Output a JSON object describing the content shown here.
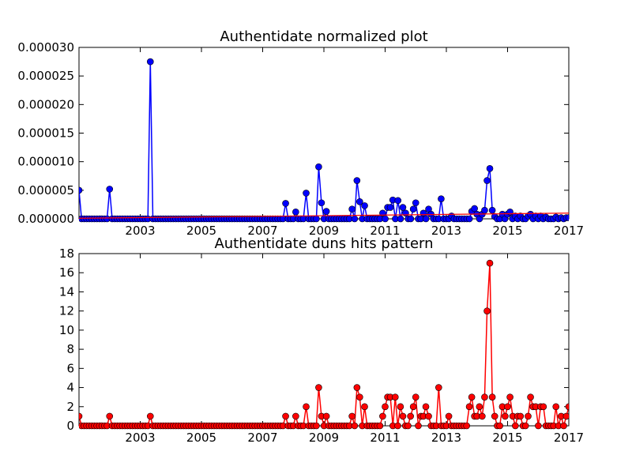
{
  "chart_data": [
    {
      "type": "line",
      "title": "Authentidate normalized plot",
      "xlabel": "",
      "ylabel": "",
      "x_ticks": [
        "2003",
        "2005",
        "2007",
        "2009",
        "2011",
        "2013",
        "2015",
        "2017"
      ],
      "y_ticks": [
        "0.000000",
        "0.000005",
        "0.000010",
        "0.000015",
        "0.000020",
        "0.000025",
        "0.000030"
      ],
      "xlim": [
        2001.0,
        2017.0
      ],
      "ylim": [
        0,
        3e-05
      ],
      "colors": {
        "series": "#0000ff",
        "trend": "#ff0000"
      },
      "series": [
        {
          "points": [
            [
              2001.0,
              5e-06
            ],
            [
              2002.0,
              5.2e-06
            ],
            [
              2003.33,
              2.75e-05
            ],
            [
              2007.75,
              2.7e-06
            ],
            [
              2008.08,
              1.2e-06
            ],
            [
              2008.42,
              4.5e-06
            ],
            [
              2008.83,
              9.1e-06
            ],
            [
              2008.92,
              2.8e-06
            ],
            [
              2009.08,
              1.3e-06
            ],
            [
              2009.92,
              1.7e-06
            ],
            [
              2010.08,
              6.7e-06
            ],
            [
              2010.17,
              3e-06
            ],
            [
              2010.33,
              2.3e-06
            ],
            [
              2010.92,
              1e-06
            ],
            [
              2011.08,
              2e-06
            ],
            [
              2011.17,
              2e-06
            ],
            [
              2011.25,
              3.3e-06
            ],
            [
              2011.42,
              3.2e-06
            ],
            [
              2011.58,
              2e-06
            ],
            [
              2011.67,
              1e-06
            ],
            [
              2011.92,
              1.7e-06
            ],
            [
              2012.0,
              2.8e-06
            ],
            [
              2012.25,
              1e-06
            ],
            [
              2012.42,
              1.7e-06
            ],
            [
              2012.5,
              8e-07
            ],
            [
              2012.83,
              3.5e-06
            ],
            [
              2013.17,
              5e-07
            ],
            [
              2013.83,
              1.3e-06
            ],
            [
              2013.92,
              1.8e-06
            ],
            [
              2014.0,
              8e-07
            ],
            [
              2014.17,
              8e-07
            ],
            [
              2014.25,
              1.5e-06
            ],
            [
              2014.33,
              6.7e-06
            ],
            [
              2014.42,
              8.8e-06
            ],
            [
              2014.5,
              1.5e-06
            ],
            [
              2014.58,
              4e-07
            ],
            [
              2014.83,
              8e-07
            ],
            [
              2015.0,
              8e-07
            ],
            [
              2015.08,
              1.2e-06
            ],
            [
              2015.25,
              5e-07
            ],
            [
              2015.42,
              5e-07
            ],
            [
              2015.67,
              5e-07
            ],
            [
              2015.75,
              8e-07
            ],
            [
              2015.92,
              5e-07
            ],
            [
              2016.08,
              5e-07
            ],
            [
              2016.25,
              3e-07
            ],
            [
              2016.58,
              3e-07
            ],
            [
              2016.75,
              2e-07
            ],
            [
              2016.92,
              2e-07
            ],
            [
              2017.0,
              2e-07
            ]
          ]
        }
      ],
      "trend_line": [
        [
          2001.0,
          1e-07
        ],
        [
          2017.0,
          1e-06
        ]
      ]
    },
    {
      "type": "line",
      "title": "Authentidate duns hits pattern",
      "xlabel": "",
      "ylabel": "",
      "x_ticks": [
        "2003",
        "2005",
        "2007",
        "2009",
        "2011",
        "2013",
        "2015",
        "2017"
      ],
      "y_ticks": [
        "0",
        "2",
        "4",
        "6",
        "8",
        "10",
        "12",
        "14",
        "16",
        "18"
      ],
      "xlim": [
        2001.0,
        2017.0
      ],
      "ylim": [
        0,
        18
      ],
      "colors": {
        "series": "#ff0000"
      },
      "series": [
        {
          "points": [
            [
              2001.0,
              1
            ],
            [
              2002.0,
              1
            ],
            [
              2003.33,
              1
            ],
            [
              2007.75,
              1
            ],
            [
              2008.08,
              1
            ],
            [
              2008.42,
              2
            ],
            [
              2008.83,
              4
            ],
            [
              2008.92,
              1
            ],
            [
              2009.08,
              1
            ],
            [
              2009.92,
              1
            ],
            [
              2010.08,
              4
            ],
            [
              2010.17,
              3
            ],
            [
              2010.33,
              2
            ],
            [
              2010.92,
              1
            ],
            [
              2011.0,
              2
            ],
            [
              2011.08,
              3
            ],
            [
              2011.17,
              3
            ],
            [
              2011.33,
              3
            ],
            [
              2011.5,
              2
            ],
            [
              2011.58,
              1
            ],
            [
              2011.83,
              1
            ],
            [
              2011.92,
              2
            ],
            [
              2012.0,
              3
            ],
            [
              2012.17,
              1
            ],
            [
              2012.25,
              1
            ],
            [
              2012.33,
              2
            ],
            [
              2012.42,
              1
            ],
            [
              2012.75,
              4
            ],
            [
              2013.08,
              1
            ],
            [
              2013.75,
              2
            ],
            [
              2013.83,
              3
            ],
            [
              2013.92,
              1
            ],
            [
              2014.0,
              1
            ],
            [
              2014.08,
              2
            ],
            [
              2014.17,
              1
            ],
            [
              2014.25,
              3
            ],
            [
              2014.33,
              12
            ],
            [
              2014.42,
              17
            ],
            [
              2014.5,
              3
            ],
            [
              2014.58,
              1
            ],
            [
              2014.83,
              2
            ],
            [
              2014.92,
              1
            ],
            [
              2015.0,
              2
            ],
            [
              2015.08,
              3
            ],
            [
              2015.17,
              1
            ],
            [
              2015.33,
              1
            ],
            [
              2015.42,
              1
            ],
            [
              2015.67,
              1
            ],
            [
              2015.75,
              3
            ],
            [
              2015.83,
              2
            ],
            [
              2015.92,
              2
            ],
            [
              2016.08,
              2
            ],
            [
              2016.17,
              2
            ],
            [
              2016.58,
              2
            ],
            [
              2016.75,
              1
            ],
            [
              2016.92,
              1
            ],
            [
              2017.0,
              2
            ]
          ]
        }
      ]
    }
  ]
}
